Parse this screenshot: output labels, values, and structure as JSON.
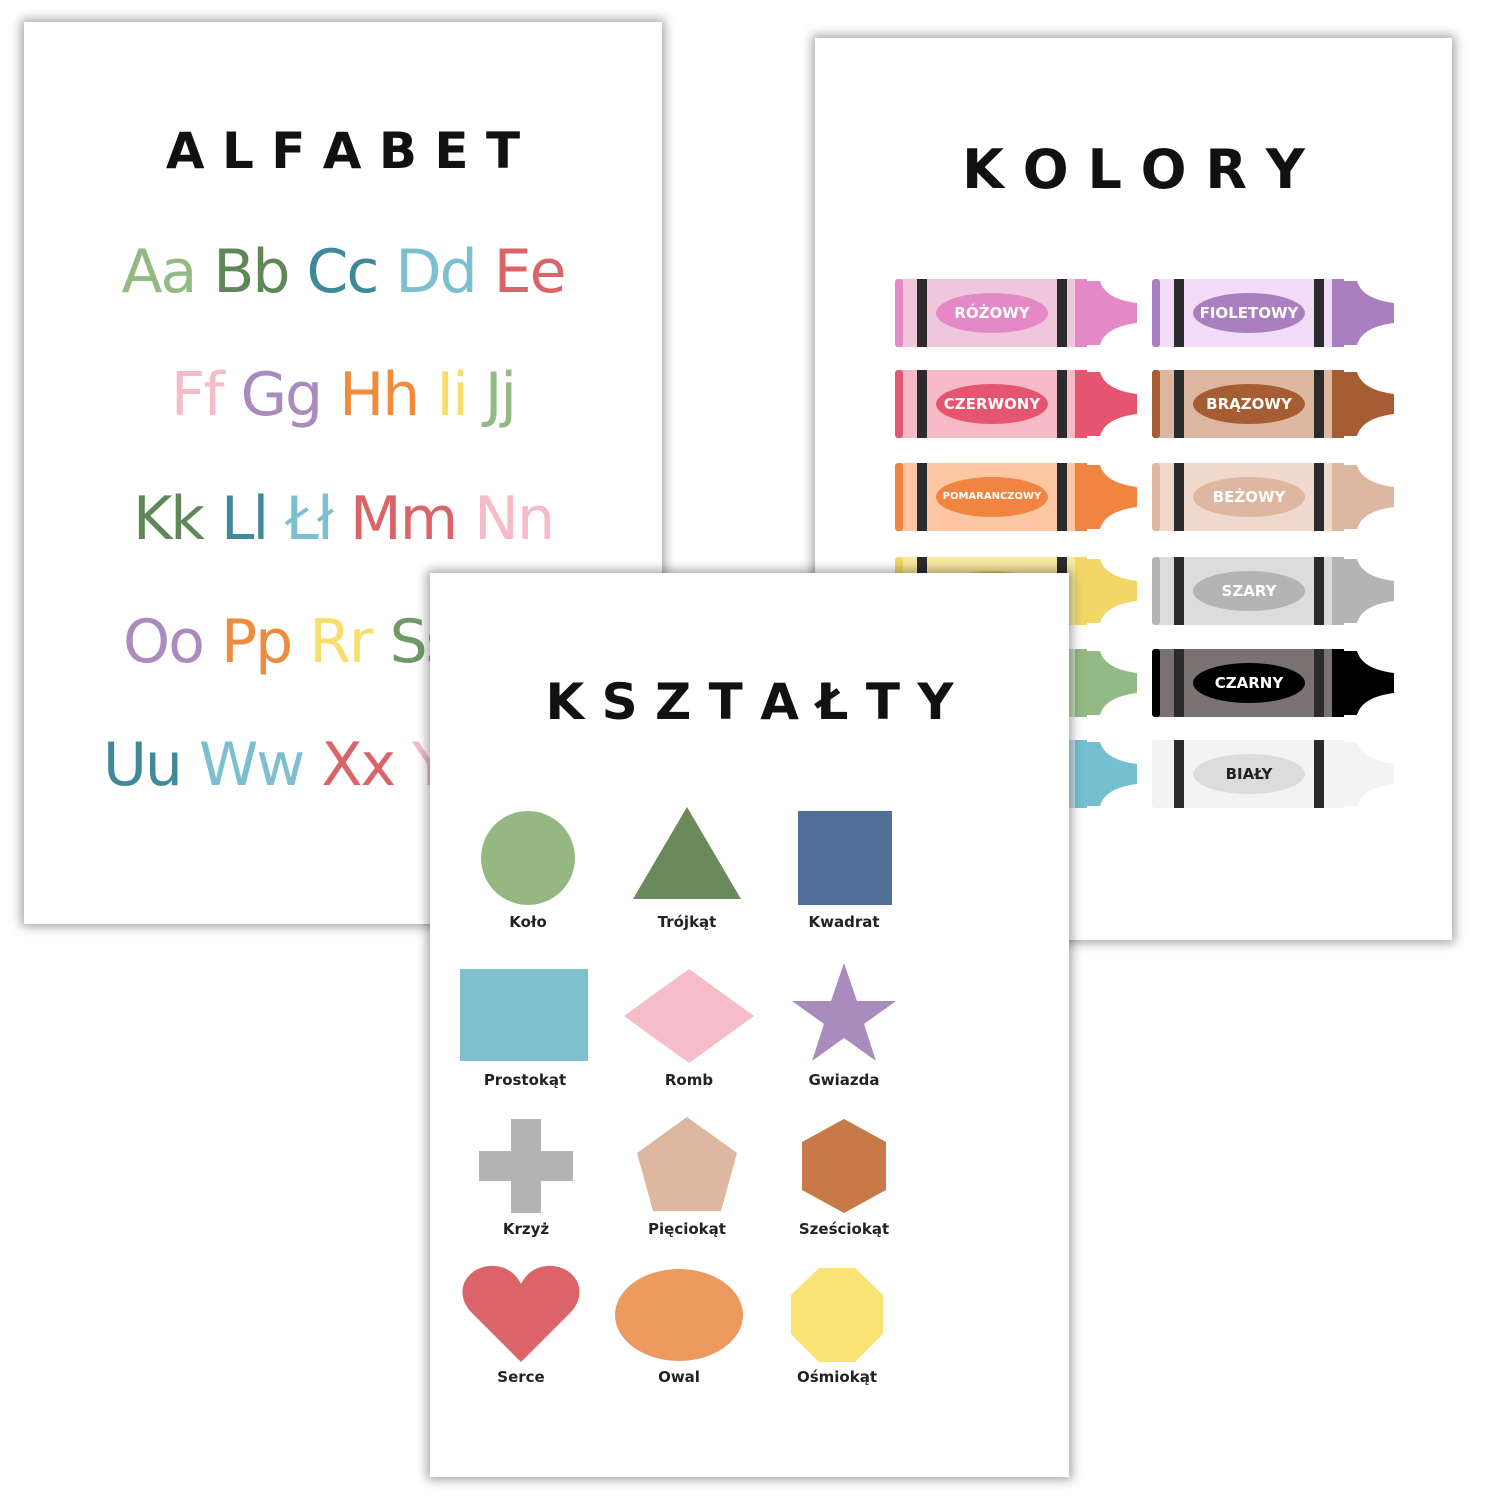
{
  "alfabet": {
    "title": "A L F A B E T",
    "rows": [
      [
        {
          "t": "Aa",
          "c": "#93b985"
        },
        {
          "t": "Bb",
          "c": "#5f8757"
        },
        {
          "t": "Cc",
          "c": "#3f8a98"
        },
        {
          "t": "Dd",
          "c": "#7cc0cf"
        },
        {
          "t": "Ee",
          "c": "#da6468"
        }
      ],
      [
        {
          "t": "Ff",
          "c": "#f5bcc8"
        },
        {
          "t": "Gg",
          "c": "#a98bbd"
        },
        {
          "t": "Hh",
          "c": "#ef8a3f"
        },
        {
          "t": "Ii",
          "c": "#f8df6c"
        },
        {
          "t": "Jj",
          "c": "#93b985"
        }
      ],
      [
        {
          "t": "Kk",
          "c": "#5f8757"
        },
        {
          "t": "Ll",
          "c": "#3f8a98"
        },
        {
          "t": "Łł",
          "c": "#7cc0cf"
        },
        {
          "t": "Mm",
          "c": "#da6468"
        },
        {
          "t": "Nn",
          "c": "#f5bcc8"
        }
      ],
      [
        {
          "t": "Oo",
          "c": "#a98bbd"
        },
        {
          "t": "Pp",
          "c": "#ef8a3f"
        },
        {
          "t": "Rr",
          "c": "#f8df6c"
        },
        {
          "t": "Ss",
          "c": "#6f9a67"
        }
      ],
      [
        {
          "t": "Uu",
          "c": "#3f8a98"
        },
        {
          "t": "Ww",
          "c": "#7cc0cf"
        },
        {
          "t": "Xx",
          "c": "#da6468"
        },
        {
          "t": "Yy",
          "c": "#f5bcc8"
        }
      ]
    ]
  },
  "kolory": {
    "title": "K O L O R Y",
    "crayons": [
      {
        "label": "RÓŻOWY",
        "body": "#f0c6dc",
        "tip": "#e489c6",
        "oval": "#e489c6",
        "text": "#ffffff"
      },
      {
        "label": "FIOLETOWY",
        "body": "#f2dcf7",
        "tip": "#a97fbf",
        "oval": "#a97fbf",
        "text": "#ffffff"
      },
      {
        "label": "CZERWONY",
        "body": "#f6b9c6",
        "tip": "#e55570",
        "oval": "#e55570",
        "text": "#ffffff"
      },
      {
        "label": "BRĄZOWY",
        "body": "#ddb7a0",
        "tip": "#a65d33",
        "oval": "#a65d33",
        "text": "#ffffff"
      },
      {
        "label": "POMARANCZOWY",
        "body": "#fcc7a2",
        "tip": "#f08440",
        "oval": "#f08440",
        "text": "#ffffff"
      },
      {
        "label": "BEŻOWY",
        "body": "#f0d8cc",
        "tip": "#ddb7a0",
        "oval": "#ddb7a0",
        "text": "#ffffff"
      },
      {
        "label": "",
        "body": "#f8e9a0",
        "tip": "#f3d766",
        "oval": "#e0c656",
        "text": "#ffffff"
      },
      {
        "label": "SZARY",
        "body": "#dcdcdc",
        "tip": "#b4b4b4",
        "oval": "#b4b4b4",
        "text": "#ffffff"
      },
      {
        "label": "",
        "body": "#c6dcbc",
        "tip": "#93b985",
        "oval": "#93b985",
        "text": "#ffffff"
      },
      {
        "label": "CZARNY",
        "body": "#7a7272",
        "tip": "#000000",
        "oval": "#000000",
        "text": "#ffffff"
      },
      {
        "label": "",
        "body": "#bfe1ea",
        "tip": "#74c0d0",
        "oval": "#74c0d0",
        "text": "#ffffff"
      },
      {
        "label": "BIAŁY",
        "body": "#f3f3f3",
        "tip": "#f3f3f3",
        "oval": "#dcdcdc",
        "text": "#222222"
      }
    ]
  },
  "ksztalty": {
    "title": "K S Z T A Ł T Y",
    "shapes": [
      {
        "label": "Koło",
        "icon": "circle",
        "color": "#95b882"
      },
      {
        "label": "Trójkąt",
        "icon": "triangle",
        "color": "#6b8a5b"
      },
      {
        "label": "Kwadrat",
        "icon": "square",
        "color": "#50709a"
      },
      {
        "label": "Prostokąt",
        "icon": "rectangle",
        "color": "#7fc0cd"
      },
      {
        "label": "Romb",
        "icon": "rhombus",
        "color": "#f6bcc8"
      },
      {
        "label": "Gwiazda",
        "icon": "star",
        "color": "#a98bbd"
      },
      {
        "label": "Krzyż",
        "icon": "cross",
        "color": "#b4b4b4"
      },
      {
        "label": "Pięciokąt",
        "icon": "pentagon",
        "color": "#ddb7a0"
      },
      {
        "label": "Sześciokąt",
        "icon": "hexagon",
        "color": "#c77a47"
      },
      {
        "label": "Serce",
        "icon": "heart",
        "color": "#da6468"
      },
      {
        "label": "Owal",
        "icon": "oval",
        "color": "#ec9a60"
      },
      {
        "label": "Ośmiokąt",
        "icon": "octagon",
        "color": "#fbe275"
      }
    ]
  }
}
